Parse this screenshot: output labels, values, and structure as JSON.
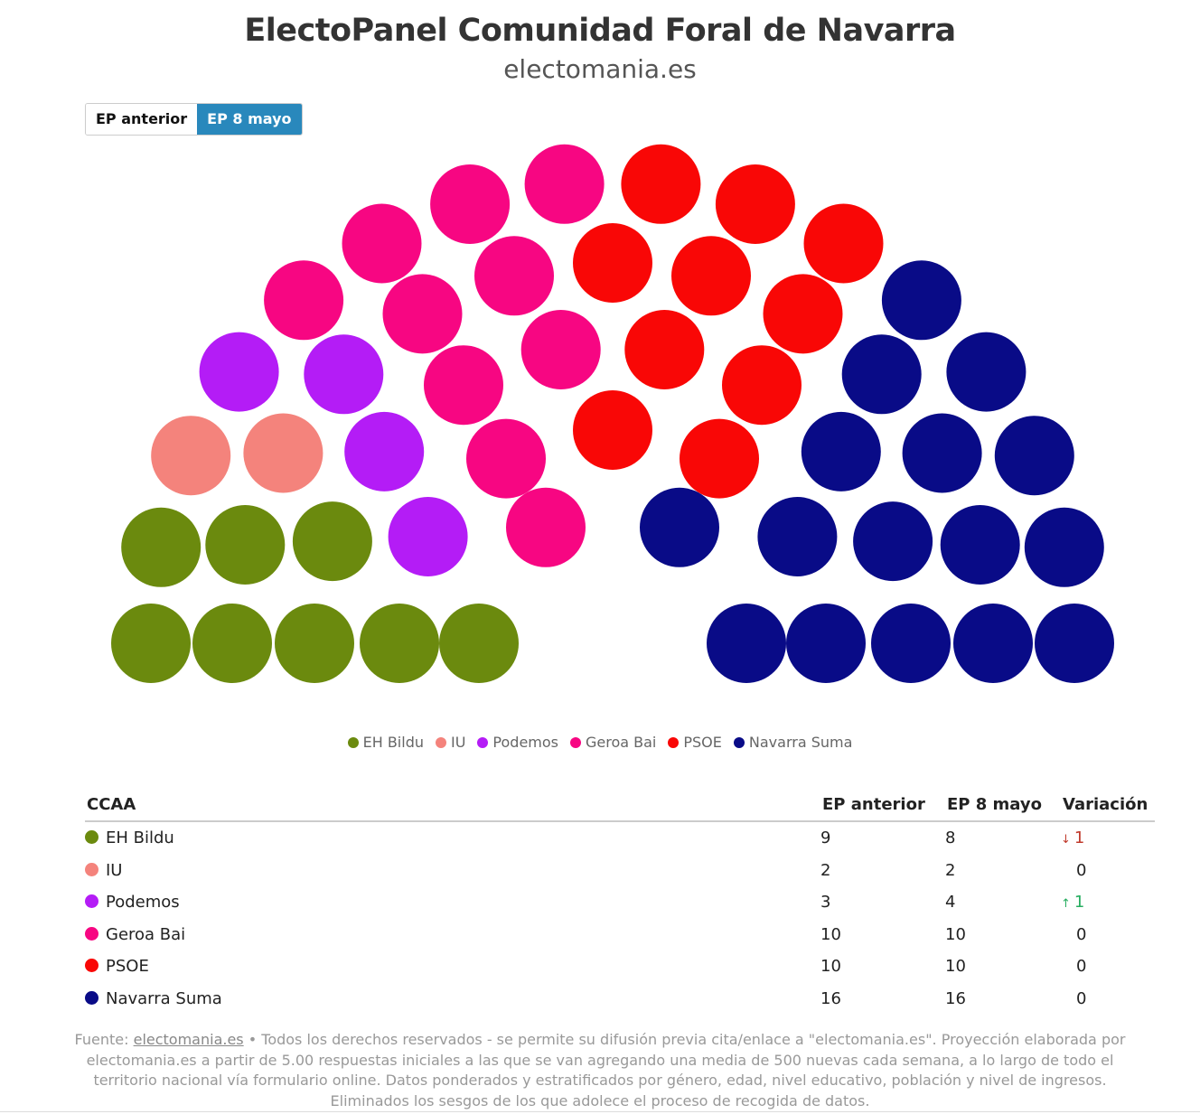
{
  "header": {
    "title": "ElectoPanel Comunidad Foral de Navarra",
    "subtitle": "electomania.es"
  },
  "toggle": {
    "options": [
      "EP anterior",
      "EP 8 mayo"
    ],
    "selected": "EP 8 mayo"
  },
  "chart_data": {
    "type": "parliament",
    "total_seats": 50,
    "parties": [
      {
        "name": "EH Bildu",
        "color": "#6b8a0e",
        "prev": 9,
        "curr": 8,
        "variation": "1",
        "direction": "down"
      },
      {
        "name": "IU",
        "color": "#f4837c",
        "prev": 2,
        "curr": 2,
        "variation": "0",
        "direction": "none"
      },
      {
        "name": "Podemos",
        "color": "#b41cf6",
        "prev": 3,
        "curr": 4,
        "variation": "1",
        "direction": "up"
      },
      {
        "name": "Geroa Bai",
        "color": "#f70682",
        "prev": 10,
        "curr": 10,
        "variation": "0",
        "direction": "none"
      },
      {
        "name": "PSOE",
        "color": "#f90706",
        "prev": 10,
        "curr": 10,
        "variation": "0",
        "direction": "none"
      },
      {
        "name": "Navarra Suma",
        "color": "#090b87",
        "prev": 16,
        "curr": 16,
        "variation": "0",
        "direction": "none"
      }
    ]
  },
  "table": {
    "headers": {
      "party": "CCAA",
      "prev": "EP anterior",
      "curr": "EP 8 mayo",
      "variation": "Variación"
    }
  },
  "footer": {
    "source_label": "Fuente:",
    "source_link": "electomania.es",
    "text": "• Todos los derechos reservados - se permite su difusión previa cita/enlace a \"electomania.es\". Proyección elaborada por electomania.es a partir de 5.00 respuestas iniciales a las que se van agregando una media de 500 nuevas cada semana, a lo largo de todo el territorio nacional vía formulario online. Datos ponderados y estratificados por género, edad, nivel educativo, población y nivel de ingresos. Eliminados los sesgos de los que adolece el proceso de recogida de datos."
  }
}
